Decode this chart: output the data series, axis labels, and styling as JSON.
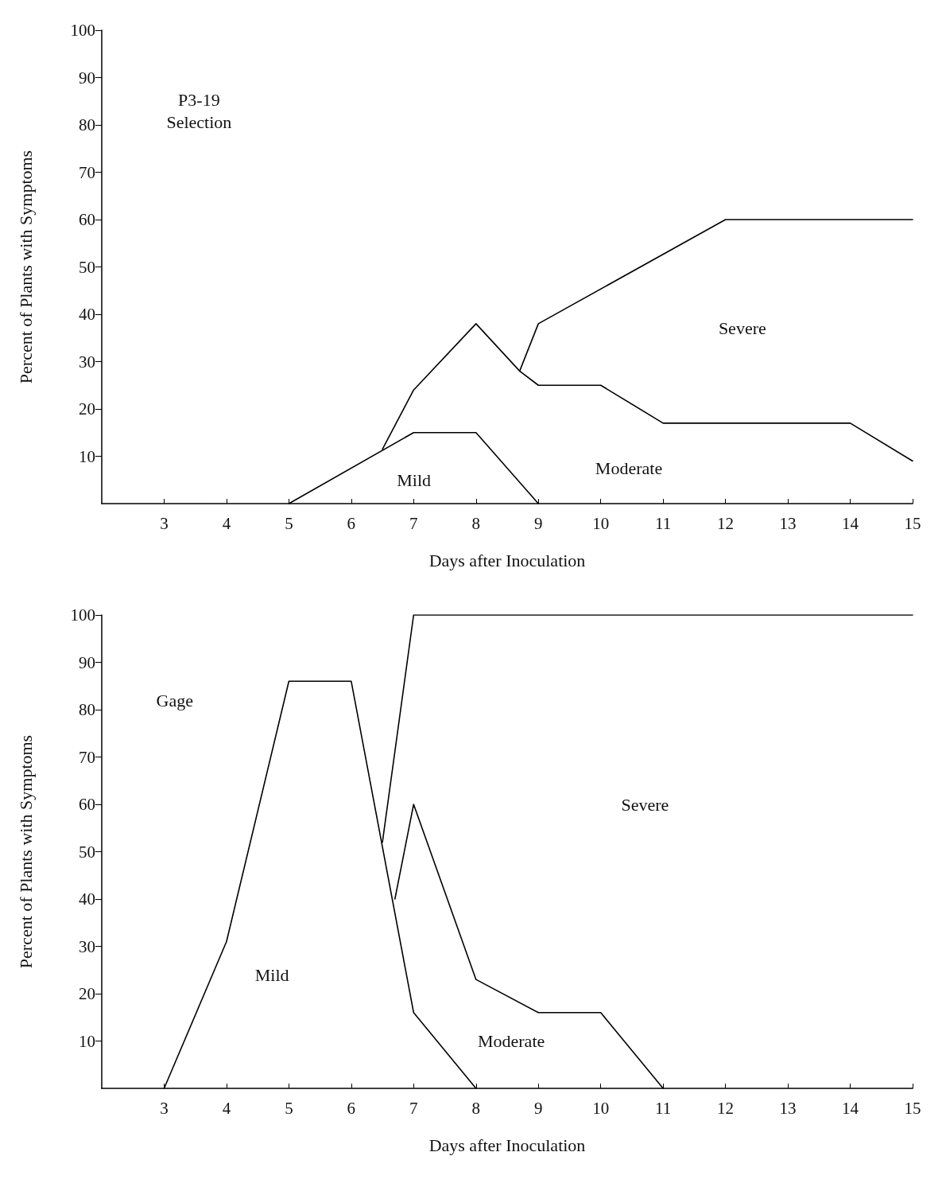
{
  "chart_data": [
    {
      "type": "line",
      "xlabel": "Days after Inoculation",
      "ylabel": "Percent of Plants with Symptoms",
      "xlim": [
        2,
        15
      ],
      "xticks": [
        3,
        4,
        5,
        6,
        7,
        8,
        9,
        10,
        11,
        12,
        13,
        14,
        15
      ],
      "ylim": [
        0,
        100
      ],
      "yticks": [
        10,
        20,
        30,
        40,
        50,
        60,
        70,
        80,
        90,
        100
      ],
      "grid": false,
      "marker": "none",
      "line_style": "solid",
      "series": [
        {
          "color": "#000000",
          "x": [
            5,
            7,
            8,
            9
          ],
          "values": [
            0,
            15,
            15,
            0
          ]
        },
        {
          "color": "#000000",
          "x": [
            6.5,
            7,
            8,
            8.7,
            9,
            10,
            11,
            14,
            15
          ],
          "values": [
            11.5,
            24,
            38,
            28,
            25,
            25,
            17,
            17,
            9
          ]
        },
        {
          "color": "#000000",
          "x": [
            8.7,
            9,
            12,
            15
          ],
          "values": [
            28,
            38,
            60,
            60
          ]
        }
      ],
      "annotations": [
        "P3-19\nSelection",
        "Mild",
        "Moderate",
        "Severe"
      ]
    },
    {
      "type": "line",
      "xlabel": "Days after Inoculation",
      "ylabel": "Percent of Plants with Symptoms",
      "xlim": [
        2,
        15
      ],
      "xticks": [
        3,
        4,
        5,
        6,
        7,
        8,
        9,
        10,
        11,
        12,
        13,
        14,
        15
      ],
      "ylim": [
        0,
        100
      ],
      "yticks": [
        10,
        20,
        30,
        40,
        50,
        60,
        70,
        80,
        90,
        100
      ],
      "grid": false,
      "marker": "none",
      "line_style": "solid",
      "series": [
        {
          "color": "#000000",
          "x": [
            3,
            4,
            5,
            6,
            7,
            8
          ],
          "values": [
            0,
            31,
            86,
            86,
            16,
            0
          ]
        },
        {
          "color": "#000000",
          "x": [
            6.7,
            7,
            8,
            9,
            10,
            11
          ],
          "values": [
            40,
            60,
            23,
            16,
            16,
            0
          ]
        },
        {
          "color": "#000000",
          "x": [
            6.5,
            7,
            15
          ],
          "values": [
            52,
            100,
            100
          ]
        }
      ],
      "annotations": [
        "Gage",
        "Mild",
        "Moderate",
        "Severe"
      ]
    }
  ]
}
